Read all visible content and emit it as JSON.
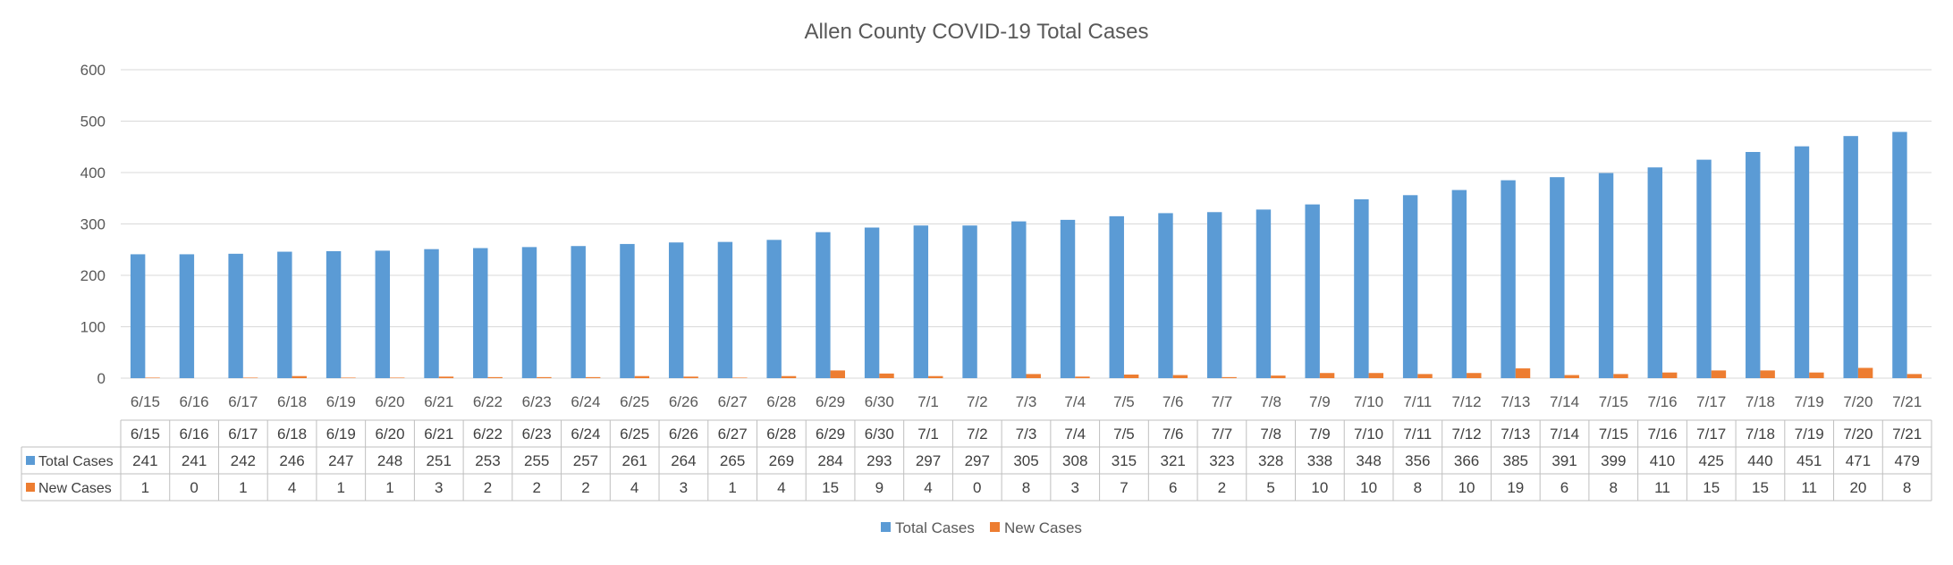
{
  "chart_data": {
    "type": "bar",
    "title": "Allen County COVID-19 Total Cases",
    "categories": [
      "6/15",
      "6/16",
      "6/17",
      "6/18",
      "6/19",
      "6/20",
      "6/21",
      "6/22",
      "6/23",
      "6/24",
      "6/25",
      "6/26",
      "6/27",
      "6/28",
      "6/29",
      "6/30",
      "7/1",
      "7/2",
      "7/3",
      "7/4",
      "7/5",
      "7/6",
      "7/7",
      "7/8",
      "7/9",
      "7/10",
      "7/11",
      "7/12",
      "7/13",
      "7/14",
      "7/15",
      "7/16",
      "7/17",
      "7/18",
      "7/19",
      "7/20",
      "7/21"
    ],
    "series": [
      {
        "name": "Total Cases",
        "color": "#5B9BD5",
        "values": [
          241,
          241,
          242,
          246,
          247,
          248,
          251,
          253,
          255,
          257,
          261,
          264,
          265,
          269,
          284,
          293,
          297,
          297,
          305,
          308,
          315,
          321,
          323,
          328,
          338,
          348,
          356,
          366,
          385,
          391,
          399,
          410,
          425,
          440,
          451,
          471,
          479
        ]
      },
      {
        "name": "New Cases",
        "color": "#ED7D31",
        "values": [
          1,
          0,
          1,
          4,
          1,
          1,
          3,
          2,
          2,
          2,
          4,
          3,
          1,
          4,
          15,
          9,
          4,
          0,
          8,
          3,
          7,
          6,
          2,
          5,
          10,
          10,
          8,
          10,
          19,
          6,
          8,
          11,
          15,
          15,
          11,
          20,
          8
        ]
      }
    ],
    "ylim": [
      0,
      600
    ],
    "yticks": [
      0,
      100,
      200,
      300,
      400,
      500,
      600
    ],
    "grid": true,
    "legend": "bottom-center",
    "data_table": true
  }
}
